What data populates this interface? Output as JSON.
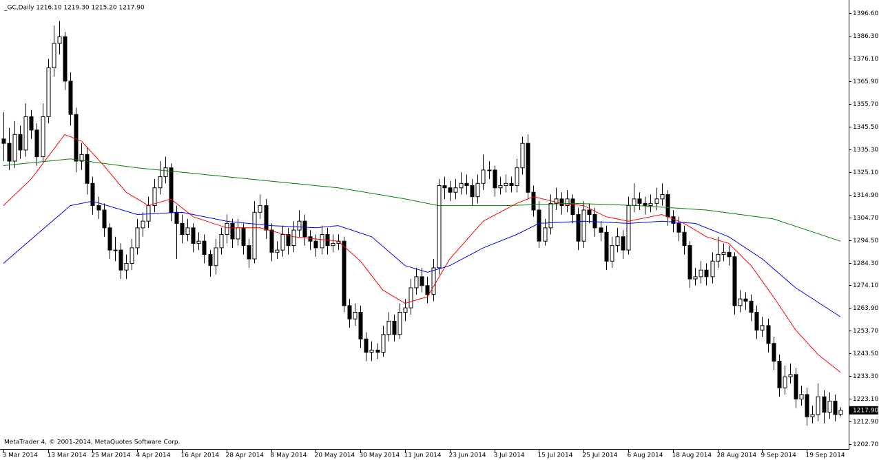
{
  "chart_data": {
    "type": "candlestick",
    "title": "_GC,Daily  1216.10 1219.30 1215.20 1217.90",
    "footer": "MetaTrader 4, © 2001-2014, MetaQuotes Software Corp.",
    "colors": {
      "up": "#ffffff",
      "down": "#000000",
      "outline": "#000000"
    },
    "ylim": [
      1200.5,
      1402.5
    ],
    "yticks": [
      {
        "value": 1396.6,
        "label": "1396.60"
      },
      {
        "value": 1386.3,
        "label": "1386.30"
      },
      {
        "value": 1376.1,
        "label": "1376.10"
      },
      {
        "value": 1365.9,
        "label": "1365.90"
      },
      {
        "value": 1355.7,
        "label": "1355.70"
      },
      {
        "value": 1345.5,
        "label": "1345.50"
      },
      {
        "value": 1335.3,
        "label": "1335.30"
      },
      {
        "value": 1325.1,
        "label": "1325.10"
      },
      {
        "value": 1314.9,
        "label": "1314.90"
      },
      {
        "value": 1304.7,
        "label": "1304.70"
      },
      {
        "value": 1294.5,
        "label": "1294.50"
      },
      {
        "value": 1284.3,
        "label": "1284.30"
      },
      {
        "value": 1274.1,
        "label": "1274.10"
      },
      {
        "value": 1263.9,
        "label": "1263.90"
      },
      {
        "value": 1253.7,
        "label": "1253.70"
      },
      {
        "value": 1243.5,
        "label": "1243.50"
      },
      {
        "value": 1233.3,
        "label": "1233.30"
      },
      {
        "value": 1223.1,
        "label": "1223.10"
      },
      {
        "value": 1212.9,
        "label": "1212.90"
      },
      {
        "value": 1202.7,
        "label": "1202.70"
      }
    ],
    "xlim": [
      -0.6,
      151.5
    ],
    "xticks": [
      {
        "value": 0,
        "label": "3 Mar 2014"
      },
      {
        "value": 8,
        "label": "13 Mar 2014"
      },
      {
        "value": 16,
        "label": "25 Mar 2014"
      },
      {
        "value": 24,
        "label": "4 Apr 2014"
      },
      {
        "value": 32,
        "label": "16 Apr 2014"
      },
      {
        "value": 40,
        "label": "28 Apr 2014"
      },
      {
        "value": 48,
        "label": "8 May 2014"
      },
      {
        "value": 56,
        "label": "20 May 2014"
      },
      {
        "value": 64,
        "label": "30 May 2014"
      },
      {
        "value": 72,
        "label": "11 Jun 2014"
      },
      {
        "value": 80,
        "label": "23 Jun 2014"
      },
      {
        "value": 88,
        "label": "3 Jul 2014"
      },
      {
        "value": 96,
        "label": "15 Jul 2014"
      },
      {
        "value": 104,
        "label": "25 Jul 2014"
      },
      {
        "value": 112,
        "label": "6 Aug 2014"
      },
      {
        "value": 120,
        "label": "18 Aug 2014"
      },
      {
        "value": 128,
        "label": "28 Aug 2014"
      },
      {
        "value": 136,
        "label": "9 Sep 2014"
      },
      {
        "value": 144,
        "label": "19 Sep 2014"
      }
    ],
    "price_marker": {
      "value": 1217.9,
      "label": "1217.90"
    },
    "ohlc": [
      [
        1340,
        1352,
        1330,
        1338
      ],
      [
        1338,
        1345,
        1326,
        1330
      ],
      [
        1330,
        1348,
        1327,
        1342
      ],
      [
        1342,
        1346,
        1331,
        1335
      ],
      [
        1335,
        1356,
        1332,
        1350
      ],
      [
        1350,
        1353,
        1340,
        1344
      ],
      [
        1344,
        1347,
        1328,
        1332
      ],
      [
        1332,
        1356,
        1330,
        1350
      ],
      [
        1350,
        1376,
        1347,
        1372
      ],
      [
        1372,
        1391,
        1368,
        1383
      ],
      [
        1383,
        1393,
        1378,
        1386
      ],
      [
        1386,
        1388,
        1362,
        1366
      ],
      [
        1366,
        1370,
        1346,
        1351
      ],
      [
        1351,
        1354,
        1325,
        1330
      ],
      [
        1330,
        1338,
        1326,
        1333
      ],
      [
        1333,
        1336,
        1315,
        1320
      ],
      [
        1320,
        1323,
        1306,
        1310
      ],
      [
        1310,
        1314,
        1304,
        1308
      ],
      [
        1308,
        1311,
        1296,
        1300
      ],
      [
        1300,
        1302,
        1286,
        1290
      ],
      [
        1290,
        1296,
        1285,
        1290
      ],
      [
        1290,
        1293,
        1277,
        1281
      ],
      [
        1281,
        1288,
        1277,
        1284
      ],
      [
        1284,
        1295,
        1281,
        1291
      ],
      [
        1291,
        1304,
        1288,
        1300
      ],
      [
        1300,
        1307,
        1296,
        1303
      ],
      [
        1303,
        1314,
        1300,
        1310
      ],
      [
        1310,
        1322,
        1307,
        1318
      ],
      [
        1318,
        1330,
        1315,
        1323
      ],
      [
        1323,
        1332,
        1320,
        1327
      ],
      [
        1327,
        1329,
        1303,
        1307
      ],
      [
        1307,
        1310,
        1286,
        1302
      ],
      [
        1302,
        1306,
        1293,
        1297
      ],
      [
        1297,
        1304,
        1294,
        1300
      ],
      [
        1300,
        1302,
        1289,
        1293
      ],
      [
        1293,
        1298,
        1290,
        1294
      ],
      [
        1294,
        1297,
        1284,
        1288
      ],
      [
        1288,
        1290,
        1278,
        1283
      ],
      [
        1283,
        1295,
        1279,
        1291
      ],
      [
        1291,
        1300,
        1288,
        1297
      ],
      [
        1297,
        1306,
        1293,
        1302
      ],
      [
        1302,
        1304,
        1291,
        1295
      ],
      [
        1295,
        1304,
        1292,
        1300
      ],
      [
        1300,
        1302,
        1288,
        1292
      ],
      [
        1292,
        1295,
        1282,
        1286
      ],
      [
        1286,
        1312,
        1284,
        1307
      ],
      [
        1307,
        1315,
        1304,
        1310
      ],
      [
        1310,
        1313,
        1295,
        1299
      ],
      [
        1299,
        1302,
        1285,
        1289
      ],
      [
        1289,
        1294,
        1286,
        1290
      ],
      [
        1290,
        1301,
        1287,
        1297
      ],
      [
        1297,
        1300,
        1288,
        1292
      ],
      [
        1292,
        1303,
        1289,
        1299
      ],
      [
        1299,
        1308,
        1296,
        1303
      ],
      [
        1303,
        1306,
        1292,
        1296
      ],
      [
        1296,
        1299,
        1290,
        1294
      ],
      [
        1294,
        1297,
        1287,
        1291
      ],
      [
        1291,
        1301,
        1288,
        1297
      ],
      [
        1297,
        1300,
        1288,
        1292
      ],
      [
        1292,
        1297,
        1289,
        1293
      ],
      [
        1293,
        1297,
        1290,
        1294
      ],
      [
        1294,
        1296,
        1262,
        1265
      ],
      [
        1265,
        1268,
        1255,
        1259
      ],
      [
        1259,
        1266,
        1256,
        1262
      ],
      [
        1262,
        1265,
        1246,
        1250
      ],
      [
        1250,
        1253,
        1240,
        1244
      ],
      [
        1244,
        1249,
        1240,
        1245
      ],
      [
        1245,
        1248,
        1241,
        1244
      ],
      [
        1244,
        1256,
        1242,
        1252
      ],
      [
        1252,
        1262,
        1249,
        1258
      ],
      [
        1258,
        1261,
        1249,
        1252
      ],
      [
        1252,
        1266,
        1250,
        1262
      ],
      [
        1262,
        1268,
        1258,
        1264
      ],
      [
        1264,
        1277,
        1261,
        1273
      ],
      [
        1273,
        1282,
        1270,
        1278
      ],
      [
        1278,
        1282,
        1271,
        1274
      ],
      [
        1274,
        1278,
        1266,
        1270
      ],
      [
        1270,
        1286,
        1267,
        1282
      ],
      [
        1282,
        1322,
        1279,
        1319
      ],
      [
        1319,
        1323,
        1313,
        1318
      ],
      [
        1318,
        1321,
        1312,
        1316
      ],
      [
        1316,
        1322,
        1313,
        1318
      ],
      [
        1318,
        1325,
        1315,
        1320
      ],
      [
        1320,
        1324,
        1315,
        1319
      ],
      [
        1319,
        1322,
        1310,
        1314
      ],
      [
        1314,
        1324,
        1311,
        1320
      ],
      [
        1320,
        1333,
        1317,
        1326
      ],
      [
        1326,
        1330,
        1322,
        1326
      ],
      [
        1326,
        1328,
        1314,
        1318
      ],
      [
        1318,
        1323,
        1315,
        1319
      ],
      [
        1319,
        1324,
        1316,
        1320
      ],
      [
        1320,
        1323,
        1316,
        1319
      ],
      [
        1319,
        1331,
        1316,
        1327
      ],
      [
        1327,
        1341,
        1324,
        1338
      ],
      [
        1338,
        1342,
        1313,
        1316
      ],
      [
        1316,
        1319,
        1305,
        1308
      ],
      [
        1308,
        1312,
        1291,
        1294
      ],
      [
        1294,
        1304,
        1292,
        1300
      ],
      [
        1300,
        1315,
        1297,
        1311
      ],
      [
        1311,
        1318,
        1308,
        1313
      ],
      [
        1313,
        1316,
        1306,
        1310
      ],
      [
        1310,
        1317,
        1307,
        1313
      ],
      [
        1313,
        1315,
        1302,
        1306
      ],
      [
        1306,
        1309,
        1290,
        1294
      ],
      [
        1294,
        1312,
        1291,
        1308
      ],
      [
        1308,
        1311,
        1302,
        1306
      ],
      [
        1306,
        1309,
        1296,
        1300
      ],
      [
        1300,
        1303,
        1294,
        1298
      ],
      [
        1298,
        1301,
        1281,
        1285
      ],
      [
        1285,
        1296,
        1282,
        1292
      ],
      [
        1292,
        1300,
        1289,
        1296
      ],
      [
        1296,
        1299,
        1286,
        1290
      ],
      [
        1290,
        1314,
        1288,
        1310
      ],
      [
        1310,
        1320,
        1307,
        1313
      ],
      [
        1313,
        1316,
        1308,
        1311
      ],
      [
        1311,
        1314,
        1306,
        1310
      ],
      [
        1310,
        1315,
        1307,
        1311
      ],
      [
        1311,
        1318,
        1308,
        1313
      ],
      [
        1313,
        1320,
        1310,
        1315
      ],
      [
        1315,
        1317,
        1301,
        1305
      ],
      [
        1305,
        1308,
        1298,
        1302
      ],
      [
        1302,
        1305,
        1294,
        1298
      ],
      [
        1298,
        1301,
        1288,
        1292
      ],
      [
        1292,
        1294,
        1273,
        1277
      ],
      [
        1277,
        1282,
        1274,
        1278
      ],
      [
        1278,
        1285,
        1275,
        1281
      ],
      [
        1281,
        1284,
        1274,
        1278
      ],
      [
        1278,
        1289,
        1275,
        1285
      ],
      [
        1285,
        1296,
        1282,
        1288
      ],
      [
        1288,
        1293,
        1285,
        1289
      ],
      [
        1289,
        1292,
        1283,
        1287
      ],
      [
        1287,
        1289,
        1261,
        1265
      ],
      [
        1265,
        1272,
        1262,
        1268
      ],
      [
        1268,
        1271,
        1263,
        1267
      ],
      [
        1267,
        1270,
        1258,
        1262
      ],
      [
        1262,
        1265,
        1250,
        1254
      ],
      [
        1254,
        1260,
        1251,
        1256
      ],
      [
        1256,
        1259,
        1244,
        1248
      ],
      [
        1248,
        1251,
        1236,
        1240
      ],
      [
        1240,
        1243,
        1224,
        1228
      ],
      [
        1228,
        1238,
        1225,
        1233
      ],
      [
        1233,
        1239,
        1230,
        1234
      ],
      [
        1234,
        1237,
        1219,
        1223
      ],
      [
        1223,
        1229,
        1220,
        1225
      ],
      [
        1225,
        1228,
        1211,
        1215
      ],
      [
        1215,
        1220,
        1212,
        1216
      ],
      [
        1216,
        1230,
        1213,
        1224
      ],
      [
        1224,
        1227,
        1212,
        1217
      ],
      [
        1217,
        1226,
        1214,
        1222
      ],
      [
        1222,
        1225,
        1213,
        1216
      ],
      [
        1216.1,
        1219.3,
        1215.2,
        1217.9
      ]
    ],
    "series": [
      {
        "color": "#ff0000",
        "x": [
          0,
          5,
          11,
          14,
          18,
          22,
          26,
          30,
          34,
          40,
          46,
          52,
          60,
          64,
          68,
          72,
          76,
          80,
          86,
          92,
          95,
          100,
          104,
          108,
          112,
          118,
          122,
          126,
          130,
          134,
          138,
          142,
          146,
          150
        ],
        "values": [
          1310,
          1322,
          1342,
          1339,
          1328,
          1316,
          1310,
          1313,
          1305,
          1300,
          1300,
          1296,
          1294,
          1285,
          1272,
          1266,
          1269,
          1286,
          1303,
          1311,
          1314,
          1311,
          1310,
          1305,
          1303,
          1306,
          1302,
          1296,
          1293,
          1283,
          1269,
          1254,
          1243,
          1235
        ]
      },
      {
        "color": "#0000ff",
        "x": [
          0,
          6,
          12,
          16,
          24,
          32,
          40,
          48,
          56,
          60,
          66,
          72,
          76,
          80,
          86,
          92,
          96,
          104,
          112,
          118,
          124,
          130,
          136,
          142,
          150
        ],
        "values": [
          1284,
          1297,
          1310,
          1312,
          1306,
          1307,
          1303,
          1301,
          1300,
          1301,
          1296,
          1283,
          1280,
          1283,
          1291,
          1297,
          1302,
          1303,
          1302,
          1303,
          1302,
          1296,
          1286,
          1273,
          1260
        ]
      },
      {
        "color": "#008000",
        "x": [
          0,
          12,
          24,
          36,
          48,
          60,
          72,
          78,
          90,
          102,
          114,
          126,
          138,
          150
        ],
        "values": [
          1328,
          1331,
          1327,
          1324,
          1321,
          1318,
          1313,
          1310,
          1310,
          1311,
          1310,
          1308,
          1304,
          1294
        ]
      }
    ]
  }
}
